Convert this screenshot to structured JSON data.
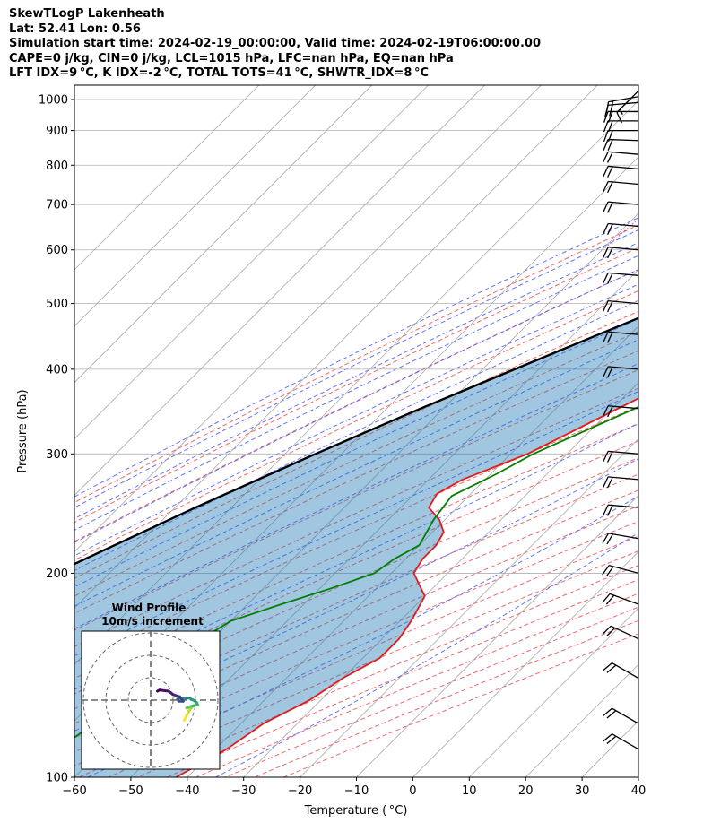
{
  "header": {
    "title": "SkewTLogP Lakenheath",
    "location": "Lat: 52.41   Lon: 0.56",
    "times": "Simulation start time: 2024-02-19_00:00:00, Valid time: 2024-02-19T06:00:00.00",
    "indices1": "CAPE=0 j/kg, CIN=0 j/kg, LCL=1015 hPa, LFC=nan hPa, EQ=nan hPa",
    "indices2": "LFT IDX=9 °C, K IDX=-2 °C, TOTAL TOTS=41 °C, SHWTR_IDX=8 °C"
  },
  "chart_data": {
    "type": "line",
    "xlabel": "Temperature ( °C)",
    "ylabel": "Pressure (hPa)",
    "xlim": [
      -60,
      40
    ],
    "ylim": [
      1050,
      100
    ],
    "y_scale": "log",
    "x_ticks": [
      "−60",
      "−50",
      "−40",
      "−30",
      "−20",
      "−10",
      "0",
      "10",
      "20",
      "30",
      "40"
    ],
    "y_ticks": [
      "1000",
      "900",
      "800",
      "700",
      "600",
      "500",
      "400",
      "300",
      "200",
      "100"
    ],
    "skew": "isotherms slanted 45°",
    "grid": true,
    "series": [
      {
        "color": "#e41a1c",
        "pressure": [
          1020,
          1000,
          980,
          950,
          900,
          850,
          800,
          750,
          700,
          650,
          600,
          550,
          500,
          450,
          400,
          350,
          300,
          275,
          262,
          250,
          240,
          230,
          220,
          210,
          200,
          185,
          170,
          160,
          150,
          140,
          130,
          120,
          110,
          100
        ],
        "temperature": [
          7.0,
          8.0,
          10.0,
          10.0,
          9.0,
          7.5,
          6.0,
          5.0,
          3.0,
          -1.0,
          -5.0,
          -8.0,
          -11.0,
          -16.0,
          -22.0,
          -29.0,
          -37.0,
          -44.0,
          -46.0,
          -45.0,
          -41.0,
          -38.0,
          -37.0,
          -37.0,
          -36.0,
          -30.0,
          -28.0,
          -27.0,
          -27.0,
          -30.0,
          -32.0,
          -36.0,
          -38.0,
          -42.0
        ]
      },
      {
        "color": "#008000",
        "pressure": [
          1020,
          1000,
          950,
          900,
          850,
          800,
          750,
          700,
          650,
          600,
          550,
          500,
          450,
          400,
          350,
          300,
          280,
          260,
          240,
          220,
          210,
          200,
          190,
          180,
          170,
          160,
          150,
          140,
          130,
          120,
          110,
          100
        ],
        "temperature": [
          6.0,
          7.0,
          2.0,
          -3.0,
          -9.0,
          -12.0,
          -10.0,
          -11.0,
          -5.0,
          4.0,
          1.0,
          -3.0,
          -10.0,
          -17.0,
          -26.0,
          -36.0,
          -39.0,
          -43.0,
          -42.0,
          -40.0,
          -42.0,
          -43.0,
          -48.0,
          -54.0,
          -60.0,
          -62.0,
          -62.0,
          -64.0,
          -65.0,
          -66.0,
          -68.0,
          -70.0
        ]
      },
      {
        "color": "#000000",
        "pressure": [
          1020,
          1000,
          950,
          900,
          850,
          800,
          750,
          700,
          650,
          600,
          550,
          500,
          450,
          400,
          350,
          300,
          250,
          200,
          150,
          100
        ],
        "temperature": [
          7.0,
          6.0,
          3.2,
          0.3,
          -2.9,
          -6.4,
          -10.2,
          -14.5,
          -19.3,
          -24.8,
          -30.9,
          -37.8,
          -45.6,
          -54.3,
          -64.0,
          -74.6,
          -86.4,
          -99.7,
          -116.0,
          -138.0
        ]
      }
    ],
    "wind_barbs": {
      "pressure": [
        1030,
        1010,
        990,
        960,
        930,
        900,
        870,
        830,
        790,
        750,
        700,
        650,
        600,
        550,
        500,
        450,
        400,
        350,
        300,
        275,
        250,
        225,
        200,
        180,
        160,
        140,
        120,
        110
      ],
      "speed_kt": [
        15,
        20,
        20,
        20,
        20,
        20,
        20,
        20,
        20,
        20,
        20,
        20,
        20,
        20,
        20,
        20,
        20,
        20,
        20,
        20,
        20,
        20,
        20,
        20,
        20,
        20,
        20,
        20
      ],
      "direction_deg": [
        225,
        260,
        265,
        270,
        270,
        270,
        272,
        275,
        275,
        275,
        275,
        275,
        275,
        275,
        275,
        275,
        275,
        275,
        275,
        275,
        275,
        280,
        285,
        290,
        295,
        300,
        300,
        300
      ]
    },
    "wind_profile": {
      "title": "Wind Profile",
      "subtitle": "10m/s increment",
      "rings": [
        10,
        20,
        30
      ],
      "hodograph_u": [
        15.0,
        16.0,
        17.0,
        18.5,
        16.0,
        17.0,
        19.0,
        21.0,
        20.5,
        19.0,
        17.0,
        14.0,
        13.0,
        12.0,
        12.5,
        14.5,
        13.0,
        10.0,
        8.0,
        4.0,
        3.0
      ],
      "hodograph_v": [
        -9.0,
        -7.0,
        -5.0,
        -3.0,
        -3.5,
        -3.0,
        -2.5,
        -2.0,
        -1.0,
        0.0,
        1.0,
        0.5,
        1.0,
        0.5,
        -0.5,
        -0.5,
        1.5,
        2.5,
        4.0,
        4.5,
        4.0
      ]
    }
  }
}
